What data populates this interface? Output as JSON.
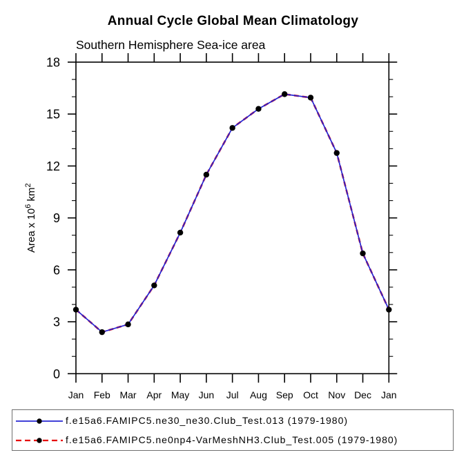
{
  "chart_data": {
    "type": "line",
    "title": "Annual Cycle Global Mean Climatology",
    "subtitle": "Southern Hemisphere Sea-ice area",
    "categories": [
      "Jan",
      "Feb",
      "Mar",
      "Apr",
      "May",
      "Jun",
      "Jul",
      "Aug",
      "Sep",
      "Oct",
      "Nov",
      "Dec",
      "Jan"
    ],
    "xlabel": "",
    "ylabel": "Area x 10⁶ km²",
    "ylim": [
      0,
      18
    ],
    "yticks_major": [
      0,
      3,
      6,
      9,
      12,
      15,
      18
    ],
    "ytick_minor_step": 1,
    "grid": false,
    "legend_position": "bottom-box",
    "axis_color": "#000000",
    "background_color": "#ffffff",
    "marker_color": "#000000",
    "series": [
      {
        "name": "f.e15a6.FAMIPC5.ne30_ne30.Club_Test.013 (1979-1980)",
        "color": "#2424d2",
        "line_style": "solid",
        "marker": "filled-circle",
        "values": [
          3.7,
          2.4,
          2.85,
          5.1,
          8.15,
          11.5,
          14.2,
          15.3,
          16.15,
          15.95,
          12.75,
          6.95,
          3.7
        ]
      },
      {
        "name": "f.e15a6.FAMIPC5.ne0np4-VarMeshNH3.Club_Test.005 (1979-1980)",
        "color": "#e60000",
        "line_style": "dashed",
        "marker": "filled-circle",
        "values": [
          3.7,
          2.4,
          2.85,
          5.1,
          8.15,
          11.5,
          14.2,
          15.3,
          16.15,
          15.95,
          12.75,
          6.95,
          3.7
        ]
      }
    ]
  }
}
